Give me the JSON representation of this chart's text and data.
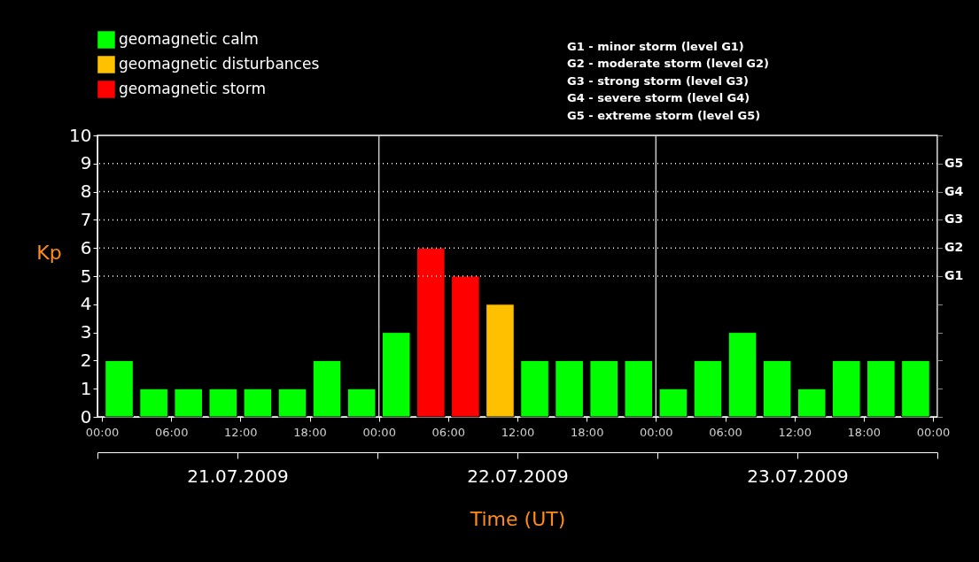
{
  "chart_data": {
    "type": "bar",
    "x": [
      "2009-07-21T01:30",
      "2009-07-21T04:30",
      "2009-07-21T07:30",
      "2009-07-21T10:30",
      "2009-07-21T13:30",
      "2009-07-21T16:30",
      "2009-07-21T19:30",
      "2009-07-21T22:30",
      "2009-07-22T01:30",
      "2009-07-22T04:30",
      "2009-07-22T07:30",
      "2009-07-22T10:30",
      "2009-07-22T13:30",
      "2009-07-22T16:30",
      "2009-07-22T19:30",
      "2009-07-22T22:30",
      "2009-07-23T01:30",
      "2009-07-23T04:30",
      "2009-07-23T07:30",
      "2009-07-23T10:30",
      "2009-07-23T13:30",
      "2009-07-23T16:30",
      "2009-07-23T19:30",
      "2009-07-23T22:30"
    ],
    "series": [
      {
        "name": "geomagnetic calm",
        "color": "#00ff00",
        "values": [
          2,
          1,
          1,
          1,
          1,
          1,
          2,
          1,
          3,
          null,
          null,
          null,
          2,
          2,
          2,
          2,
          1,
          2,
          3,
          2,
          1,
          2,
          2,
          2
        ]
      },
      {
        "name": "geomagnetic disturbances",
        "color": "#ffc000",
        "values": [
          null,
          null,
          null,
          null,
          null,
          null,
          null,
          null,
          null,
          null,
          null,
          4,
          null,
          null,
          null,
          null,
          null,
          null,
          null,
          null,
          null,
          null,
          null,
          null
        ]
      },
      {
        "name": "geomagnetic storm",
        "color": "#ff0000",
        "values": [
          null,
          null,
          null,
          null,
          null,
          null,
          null,
          null,
          null,
          6,
          5,
          null,
          null,
          null,
          null,
          null,
          null,
          null,
          null,
          null,
          null,
          null,
          null,
          null
        ]
      }
    ],
    "xlabel": "Time (UT)",
    "ylabel": "Kp",
    "xlim": [
      "2009-07-21T00:00",
      "2009-07-24T00:00"
    ],
    "xticks": [
      {
        "value": "2009-07-21T00:00",
        "label": "00:00"
      },
      {
        "value": "2009-07-21T06:00",
        "label": "06:00"
      },
      {
        "value": "2009-07-21T12:00",
        "label": "12:00"
      },
      {
        "value": "2009-07-21T18:00",
        "label": "18:00"
      },
      {
        "value": "2009-07-22T00:00",
        "label": "00:00"
      },
      {
        "value": "2009-07-22T06:00",
        "label": "06:00"
      },
      {
        "value": "2009-07-22T12:00",
        "label": "12:00"
      },
      {
        "value": "2009-07-22T18:00",
        "label": "18:00"
      },
      {
        "value": "2009-07-23T00:00",
        "label": "00:00"
      },
      {
        "value": "2009-07-23T06:00",
        "label": "06:00"
      },
      {
        "value": "2009-07-23T12:00",
        "label": "12:00"
      },
      {
        "value": "2009-07-23T18:00",
        "label": "18:00"
      },
      {
        "value": "2009-07-24T00:00",
        "label": "00:00"
      }
    ],
    "x2lim": [
      "2009-07-21T00:00",
      "2009-07-24T00:00"
    ],
    "x2ticks": [
      {
        "value": "2009-07-21T00:00",
        "label": null
      },
      {
        "value": "2009-07-21T12:00",
        "label": "21.07.2009"
      },
      {
        "value": "2009-07-22T00:00",
        "label": null
      },
      {
        "value": "2009-07-22T12:00",
        "label": "22.07.2009"
      },
      {
        "value": "2009-07-23T00:00",
        "label": null
      },
      {
        "value": "2009-07-23T12:00",
        "label": "23.07.2009"
      },
      {
        "value": "2009-07-24T00:00",
        "label": null
      }
    ],
    "ylim": [
      0,
      10
    ],
    "yticks": [
      0,
      1,
      2,
      3,
      4,
      5,
      6,
      7,
      8,
      9,
      10
    ],
    "ref_lines": [
      {
        "axis": "x",
        "value": "2009-07-22T00:00",
        "color": "#c8c8c8"
      },
      {
        "axis": "x",
        "value": "2009-07-23T00:00",
        "color": "#c8c8c8"
      },
      {
        "axis": "y",
        "value": 5,
        "label": "G1",
        "color": "#ffffff",
        "line_style": "dotted"
      },
      {
        "axis": "y",
        "value": 6,
        "label": "G2",
        "color": "#ffffff",
        "line_style": "dotted"
      },
      {
        "axis": "y",
        "value": 7,
        "label": "G3",
        "color": "#ffffff",
        "line_style": "dotted"
      },
      {
        "axis": "y",
        "value": 8,
        "label": "G4",
        "color": "#ffffff",
        "line_style": "dotted"
      },
      {
        "axis": "y",
        "value": 9,
        "label": "G5",
        "color": "#ffffff",
        "line_style": "dotted"
      }
    ],
    "annotations": [
      "G1 - minor storm (level G1)",
      "G2 - moderate storm (level G2)",
      "G3 - strong storm (level G3)",
      "G4 - severe storm (level G4)",
      "G5 - extreme storm (level G5)"
    ],
    "legend": "top left",
    "grid": false
  }
}
